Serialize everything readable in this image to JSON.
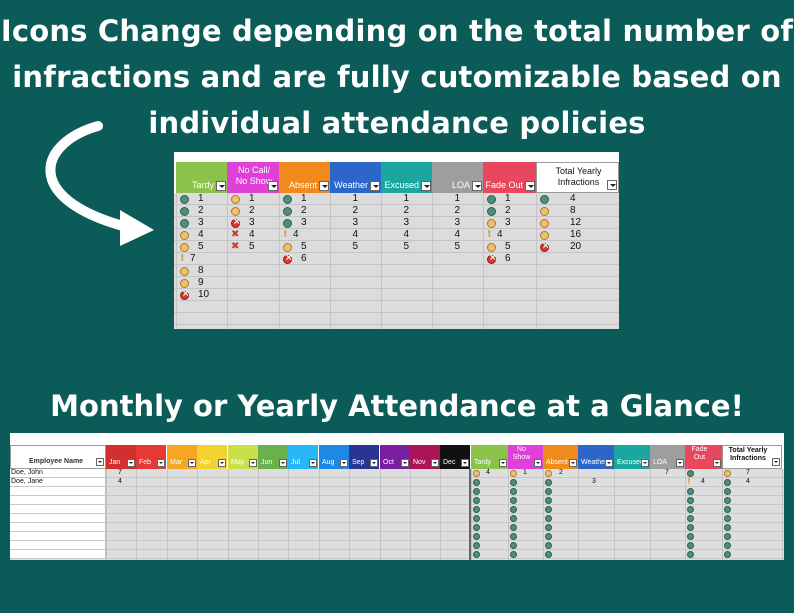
{
  "headline_top": "Icons Change depending on the total number of infractions and are fully cutomizable based on individual attendance policies",
  "headline_bottom": "Monthly or Yearly Attendance at a Glance!",
  "top_sheet": {
    "columns": [
      {
        "label": "Tardy",
        "color": "#8bc34a"
      },
      {
        "label": "No Call/\nNo Show",
        "color": "#e040d8"
      },
      {
        "label": "Absent",
        "color": "#f08a1c"
      },
      {
        "label": "Weather",
        "color": "#2c66c8"
      },
      {
        "label": "Excused",
        "color": "#1ba7a0"
      },
      {
        "label": "LOA",
        "color": "#9e9e9e"
      },
      {
        "label": "Fade Out",
        "color": "#e8475e"
      },
      {
        "label": "Total Yearly\nInfractions",
        "color": "#ffffff"
      }
    ],
    "rows": [
      [
        [
          "green",
          "1"
        ],
        [
          "yellow",
          "1"
        ],
        [
          "green",
          "1"
        ],
        [
          null,
          "1"
        ],
        [
          null,
          "1"
        ],
        [
          null,
          "1"
        ],
        [
          "green",
          "1"
        ],
        [
          "green",
          "4"
        ]
      ],
      [
        [
          "green",
          "2"
        ],
        [
          "yellow",
          "2"
        ],
        [
          "green",
          "2"
        ],
        [
          null,
          "2"
        ],
        [
          null,
          "2"
        ],
        [
          null,
          "2"
        ],
        [
          "green",
          "2"
        ],
        [
          "yellow",
          "8"
        ]
      ],
      [
        [
          "green",
          "3"
        ],
        [
          "redx",
          "3"
        ],
        [
          "green",
          "3"
        ],
        [
          null,
          "3"
        ],
        [
          null,
          "3"
        ],
        [
          null,
          "3"
        ],
        [
          "yellow",
          "3"
        ],
        [
          "yellow",
          "12"
        ]
      ],
      [
        [
          "yellow",
          "4"
        ],
        [
          "bigx",
          "4"
        ],
        [
          "excl",
          "4"
        ],
        [
          null,
          "4"
        ],
        [
          null,
          "4"
        ],
        [
          null,
          "4"
        ],
        [
          "excl",
          "4"
        ],
        [
          "yellow",
          "16"
        ]
      ],
      [
        [
          "yellow",
          "5"
        ],
        [
          "bigx",
          "5"
        ],
        [
          "yellow",
          "5"
        ],
        [
          null,
          "5"
        ],
        [
          null,
          "5"
        ],
        [
          null,
          "5"
        ],
        [
          "yellow",
          "5"
        ],
        [
          "redx",
          "20"
        ]
      ],
      [
        [
          "excl",
          "7"
        ],
        null,
        [
          "redx",
          "6"
        ],
        null,
        null,
        null,
        [
          "redx",
          "6"
        ],
        null
      ],
      [
        [
          "yellow",
          "8"
        ],
        null,
        null,
        null,
        null,
        null,
        null,
        null
      ],
      [
        [
          "yellow",
          "9"
        ],
        null,
        null,
        null,
        null,
        null,
        null,
        null
      ],
      [
        [
          "redx",
          "10"
        ],
        null,
        null,
        null,
        null,
        null,
        null,
        null
      ]
    ]
  },
  "bottom_sheet": {
    "name_header": "Employee Name",
    "months": [
      {
        "label": "Jan",
        "color": "#d32f2f"
      },
      {
        "label": "Feb",
        "color": "#e53935"
      },
      {
        "label": "Mar",
        "color": "#f5a623"
      },
      {
        "label": "Apr",
        "color": "#f2d22e"
      },
      {
        "label": "May",
        "color": "#c9e04b"
      },
      {
        "label": "Jun",
        "color": "#6ab04c"
      },
      {
        "label": "Jul",
        "color": "#29b6f6"
      },
      {
        "label": "Aug",
        "color": "#1e88e5"
      },
      {
        "label": "Sep",
        "color": "#283593"
      },
      {
        "label": "Oct",
        "color": "#7b1fa2"
      },
      {
        "label": "Nov",
        "color": "#ad1457"
      },
      {
        "label": "Dec",
        "color": "#111111"
      }
    ],
    "summary": [
      {
        "label": "Tardy",
        "color": "#8bc34a"
      },
      {
        "label": "No\nShow",
        "color": "#e040d8"
      },
      {
        "label": "Absent",
        "color": "#f08a1c"
      },
      {
        "label": "Weather",
        "color": "#2c66c8"
      },
      {
        "label": "Excused",
        "color": "#1ba7a0"
      },
      {
        "label": "LOA",
        "color": "#9e9e9e"
      },
      {
        "label": "Fade\nOut",
        "color": "#e8475e"
      },
      {
        "label": "Total Yearly\nInfractions",
        "color": "#ffffff"
      }
    ],
    "employees": [
      {
        "name": "Doe, John",
        "jan": "7",
        "tardy": "4",
        "noshow": "1",
        "absent": "2",
        "weather": "",
        "loa": "7",
        "total": "7"
      },
      {
        "name": "Doe, Jane",
        "jan": "4",
        "tardy": "",
        "noshow": "",
        "absent": "",
        "weather": "3",
        "loa": "",
        "total": "4",
        "fade": "4"
      }
    ]
  }
}
